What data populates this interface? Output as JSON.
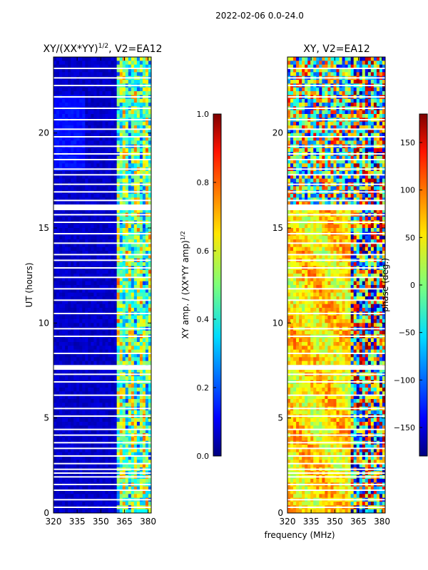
{
  "suptitle": "2022-02-06 0.0-24.0",
  "chart_data": [
    {
      "type": "heatmap",
      "title": "XY/(XX*YY)^1/2, V2=EA12",
      "title_main": "XY/(XX*YY)",
      "title_exp": "1/2",
      "title_tail": ", V2=EA12",
      "ylabel": "UT (hours)",
      "xlabel": "",
      "xlim": [
        320,
        382
      ],
      "ylim": [
        0,
        24
      ],
      "xticks": [
        320,
        335,
        350,
        365,
        380
      ],
      "yticks": [
        0,
        5,
        10,
        15,
        20
      ],
      "colorbar": {
        "label": "XY amp. / (XX*YY amp)^1/2",
        "label_main": "XY amp. / (XX*YY amp)",
        "label_exp": "1/2",
        "range": [
          0.0,
          1.0
        ],
        "ticks": [
          "0.0",
          "0.2",
          "0.4",
          "0.6",
          "0.8",
          "1.0"
        ]
      },
      "colormap": "jet",
      "note": "mostly low amplitude (~0.05) below 360 MHz; elevated 0.3-0.7 amplitude bands between ~361 and ~380 MHz; white gaps = flagged times"
    },
    {
      "type": "heatmap",
      "title": "XY, V2=EA12",
      "ylabel": "",
      "xlabel": "frequency (MHz)",
      "xlim": [
        320,
        382
      ],
      "ylim": [
        0,
        24
      ],
      "xticks": [
        320,
        335,
        350,
        365,
        380
      ],
      "yticks": [
        0,
        5,
        10,
        15,
        20
      ],
      "colorbar": {
        "label": "phase (deg.)",
        "range": [
          -180,
          180
        ],
        "ticks": [
          "150",
          "100",
          "50",
          "0",
          "−50",
          "−100",
          "−150"
        ]
      },
      "colormap": "jet",
      "note": "phase mostly 0-100 deg below ~360 MHz, scattered +/-180 at upper frequencies; flagged rows blank"
    }
  ],
  "flagged_hours": [
    0.3,
    0.7,
    1.2,
    1.5,
    1.9,
    2.1,
    2.3,
    2.6,
    3.0,
    3.4,
    3.7,
    4.1,
    4.4,
    5.1,
    5.5,
    6.2,
    6.9,
    7.3,
    7.65,
    7.75,
    8.4,
    9.3,
    9.7,
    10.5,
    11.2,
    11.8,
    12.4,
    12.9,
    13.3,
    13.6,
    14.2,
    14.7,
    15.3,
    15.7,
    16.05,
    16.2,
    16.45,
    16.9,
    17.3,
    17.8,
    18.1,
    18.6,
    18.9,
    19.3,
    19.8,
    20.2,
    20.7,
    21.3,
    21.9,
    22.5,
    22.9,
    23.4
  ]
}
